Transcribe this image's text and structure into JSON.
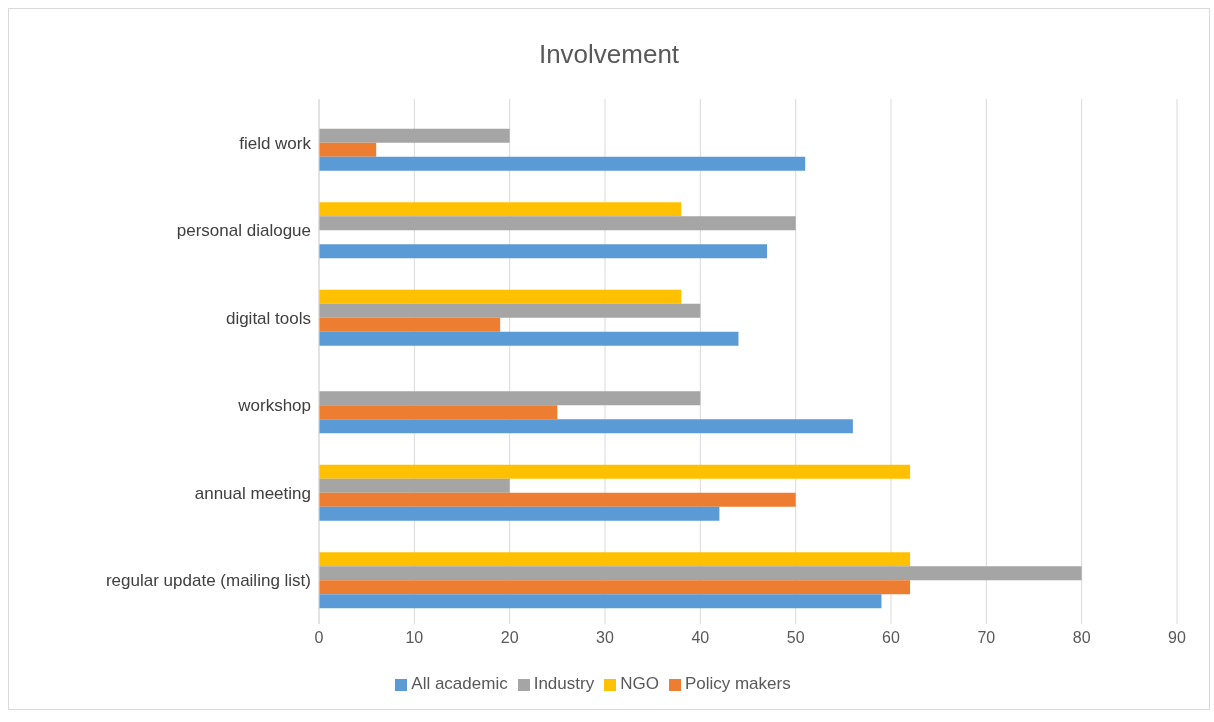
{
  "chart_data": {
    "type": "bar",
    "orientation": "horizontal",
    "title": "Involvement",
    "categories": [
      "field work",
      "personal dialogue",
      "digital tools",
      "workshop",
      "annual meeting",
      "regular update (mailing list)"
    ],
    "series": [
      {
        "name": "NGO",
        "color": "#ffc000",
        "values": [
          null,
          38,
          38,
          null,
          62,
          62
        ]
      },
      {
        "name": "Industry",
        "color": "#a5a5a5",
        "values": [
          20,
          50,
          40,
          40,
          20,
          80
        ]
      },
      {
        "name": "Policy makers",
        "color": "#ed7d31",
        "values": [
          6,
          null,
          19,
          25,
          50,
          62
        ]
      },
      {
        "name": "All academic",
        "color": "#5b9bd5",
        "values": [
          51,
          47,
          44,
          56,
          42,
          59
        ]
      }
    ],
    "xlim": [
      0,
      90
    ],
    "xticks": [
      0,
      10,
      20,
      30,
      40,
      50,
      60,
      70,
      80,
      90
    ],
    "grid": "x",
    "legend": "bottom"
  }
}
